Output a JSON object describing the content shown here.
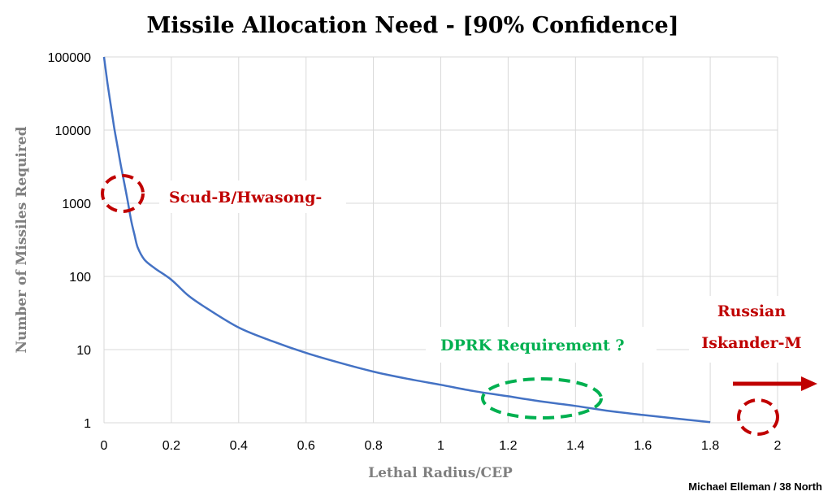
{
  "chart_data": {
    "type": "line",
    "title": "Missile Allocation Need - [90% Confidence]",
    "xlabel": "Lethal Radius/CEP",
    "ylabel": "Number of Missiles Required",
    "xlim": [
      0,
      2
    ],
    "ylim": [
      1,
      100000
    ],
    "yscale": "log",
    "grid": true,
    "x_ticks": [
      "0",
      "0.2",
      "0.4",
      "0.6",
      "0.8",
      "1",
      "1.2",
      "1.4",
      "1.6",
      "1.8",
      "2"
    ],
    "y_ticks": [
      "1",
      "10",
      "100",
      "1000",
      "10000",
      "100000"
    ],
    "series": [
      {
        "color": "#4472c4",
        "x": [
          0,
          0.01,
          0.02,
          0.03,
          0.04,
          0.05,
          0.06,
          0.07,
          0.08,
          0.09,
          0.1,
          0.12,
          0.15,
          0.2,
          0.25,
          0.3,
          0.4,
          0.5,
          0.6,
          0.7,
          0.8,
          0.9,
          1.0,
          1.1,
          1.2,
          1.3,
          1.4,
          1.5,
          1.6,
          1.7,
          1.8
        ],
        "y": [
          100000,
          45000,
          22000,
          11000,
          6000,
          3300,
          1900,
          1100,
          600,
          380,
          250,
          170,
          130,
          90,
          55,
          38,
          20,
          13,
          9,
          6.6,
          5,
          4,
          3.3,
          2.7,
          2.3,
          1.95,
          1.7,
          1.45,
          1.28,
          1.14,
          1.02
        ]
      }
    ],
    "annotations": [
      {
        "text": "Scud-B/Hwasong-",
        "color": "#c00000"
      },
      {
        "text": "DPRK Requirement ?",
        "color": "#00b050"
      },
      {
        "text": "Russian",
        "color": "#c00000"
      },
      {
        "text": "Iskander-M",
        "color": "#c00000"
      }
    ],
    "credit": "Michael Elleman / 38 North"
  }
}
